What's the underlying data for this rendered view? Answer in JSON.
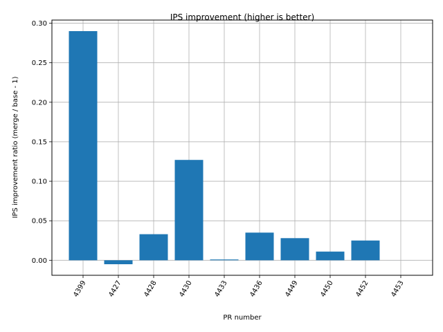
{
  "chart_data": {
    "type": "bar",
    "title": "IPS improvement (higher is better)",
    "xlabel": "PR number",
    "ylabel": "IPS improvement ratio (merge / base - 1)",
    "categories": [
      "4399",
      "4427",
      "4428",
      "4430",
      "4433",
      "4436",
      "4449",
      "4450",
      "4452",
      "4453"
    ],
    "values": [
      0.29,
      -0.005,
      0.033,
      0.127,
      0.001,
      0.035,
      0.028,
      0.011,
      0.025,
      0.0
    ],
    "ylim": [
      -0.019,
      0.304
    ],
    "yticks": [
      0.0,
      0.05,
      0.1,
      0.15,
      0.2,
      0.25,
      0.3
    ],
    "ytick_labels": [
      "0.00",
      "0.05",
      "0.10",
      "0.15",
      "0.20",
      "0.25",
      "0.30"
    ],
    "grid": true,
    "x_tick_rotation_deg": 60,
    "bar_color": "#1f77b4",
    "grid_color": "#b0b0b0"
  }
}
